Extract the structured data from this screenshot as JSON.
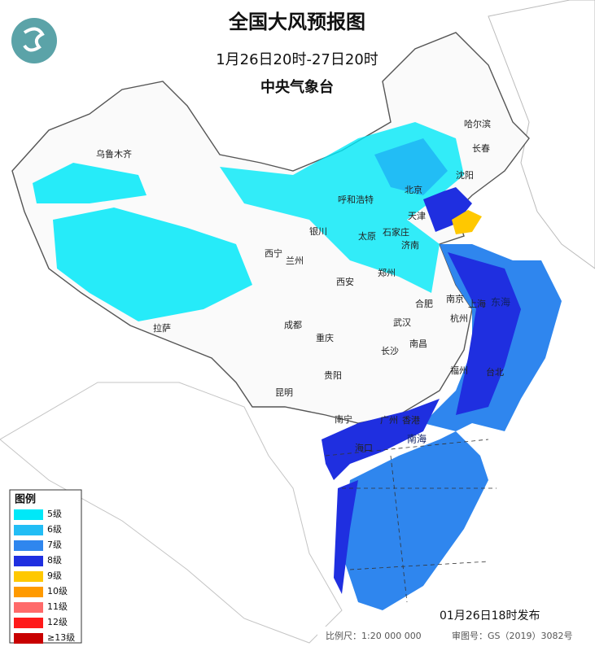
{
  "header": {
    "title": "全国大风预报图",
    "subtitle": "1月26日20时-27日20时",
    "issuer": "中央气象台"
  },
  "legend": {
    "title": "图例",
    "items": [
      {
        "label": "5级",
        "color": "#00e8f8"
      },
      {
        "label": "6级",
        "color": "#22bdf5"
      },
      {
        "label": "7级",
        "color": "#2f86ee"
      },
      {
        "label": "8级",
        "color": "#1f2fe0"
      },
      {
        "label": "9级",
        "color": "#ffc800"
      },
      {
        "label": "10级",
        "color": "#ff9a00"
      },
      {
        "label": "11级",
        "color": "#ff6a6a"
      },
      {
        "label": "12级",
        "color": "#ff1a1a"
      },
      {
        "label": "≥13级",
        "color": "#c80000"
      }
    ]
  },
  "cities": [
    "乌鲁木齐",
    "哈尔滨",
    "长春",
    "沈阳",
    "呼和浩特",
    "北京",
    "天津",
    "石家庄",
    "太原",
    "济南",
    "银川",
    "西宁",
    "兰州",
    "郑州",
    "西安",
    "南京",
    "合肥",
    "上海",
    "杭州",
    "武汉",
    "成都",
    "重庆",
    "长沙",
    "南昌",
    "福州",
    "台北",
    "贵阳",
    "昆明",
    "南宁",
    "广州",
    "香港",
    "海口",
    "拉萨"
  ],
  "seas": [
    "东海",
    "南海"
  ],
  "footer": {
    "issued": "01月26日18时发布",
    "scale": "比例尺：1:20 000 000",
    "approval": "审图号：GS（2019）3082号"
  }
}
